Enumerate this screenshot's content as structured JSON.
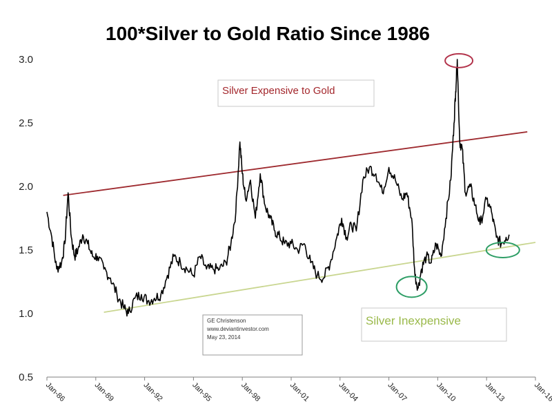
{
  "chart_data": {
    "type": "line",
    "title": "100*Silver to Gold Ratio Since 1986",
    "xlabel": "",
    "ylabel": "",
    "ylim": [
      0.5,
      3.0
    ],
    "yticks": [
      "0.5",
      "1.0",
      "1.5",
      "2.0",
      "2.5",
      "3.0"
    ],
    "xlim": [
      1986.0,
      2016.0
    ],
    "xtick_labels": [
      "Jan-86",
      "Jan-89",
      "Jan-92",
      "Jan-95",
      "Jan-98",
      "Jan-01",
      "Jan-04",
      "Jan-07",
      "Jan-10",
      "Jan-13",
      "Jan-16"
    ],
    "xtick_years": [
      1986,
      1989,
      1992,
      1995,
      1998,
      2001,
      2004,
      2007,
      2010,
      2013,
      2016
    ],
    "grid": false,
    "series": [
      {
        "color": "#000000",
        "x": [
          1986.0,
          1986.3,
          1986.6,
          1986.9,
          1987.1,
          1987.3,
          1987.5,
          1987.7,
          1987.9,
          1988.2,
          1988.5,
          1988.8,
          1989.1,
          1989.5,
          1989.9,
          1990.3,
          1990.7,
          1991.0,
          1991.4,
          1991.8,
          1992.2,
          1992.6,
          1993.0,
          1993.4,
          1993.8,
          1994.2,
          1994.6,
          1995.0,
          1995.4,
          1995.8,
          1996.2,
          1996.6,
          1997.0,
          1997.3,
          1997.6,
          1997.85,
          1998.0,
          1998.2,
          1998.5,
          1998.8,
          1999.1,
          1999.4,
          1999.7,
          2000.0,
          2000.3,
          2000.6,
          2001.0,
          2001.4,
          2001.8,
          2002.2,
          2002.6,
          2003.0,
          2003.4,
          2003.8,
          2004.1,
          2004.4,
          2004.7,
          2005.0,
          2005.4,
          2005.8,
          2006.2,
          2006.6,
          2007.0,
          2007.4,
          2007.8,
          2008.1,
          2008.4,
          2008.6,
          2008.8,
          2009.0,
          2009.3,
          2009.6,
          2009.9,
          2010.2,
          2010.5,
          2010.8,
          2011.0,
          2011.1,
          2011.2,
          2011.35,
          2011.5,
          2011.7,
          2012.0,
          2012.3,
          2012.6,
          2013.0,
          2013.3,
          2013.6,
          2013.9,
          2014.2,
          2014.4
        ],
        "values": [
          1.8,
          1.6,
          1.35,
          1.4,
          1.55,
          1.95,
          1.6,
          1.45,
          1.5,
          1.62,
          1.55,
          1.45,
          1.45,
          1.35,
          1.28,
          1.15,
          1.05,
          1.0,
          1.12,
          1.15,
          1.1,
          1.12,
          1.15,
          1.3,
          1.45,
          1.4,
          1.35,
          1.3,
          1.45,
          1.35,
          1.35,
          1.35,
          1.4,
          1.55,
          1.8,
          2.35,
          2.1,
          1.9,
          2.05,
          1.75,
          2.1,
          1.85,
          1.75,
          1.65,
          1.6,
          1.55,
          1.55,
          1.5,
          1.55,
          1.4,
          1.3,
          1.28,
          1.4,
          1.6,
          1.75,
          1.6,
          1.7,
          1.65,
          2.05,
          2.15,
          2.1,
          1.95,
          2.15,
          2.05,
          1.9,
          1.95,
          1.75,
          1.3,
          1.2,
          1.35,
          1.45,
          1.4,
          1.55,
          1.45,
          1.75,
          2.05,
          2.5,
          2.75,
          3.0,
          2.35,
          2.3,
          1.95,
          2.0,
          1.85,
          1.7,
          1.9,
          1.8,
          1.6,
          1.55,
          1.6,
          1.62
        ]
      }
    ],
    "trendlines": [
      {
        "kind": "upper",
        "color": "#9e2a2f",
        "x": [
          1987.0,
          2015.5
        ],
        "y": [
          1.93,
          2.43
        ]
      },
      {
        "kind": "lower",
        "color": "#c9d690",
        "x": [
          1989.5,
          2016.0
        ],
        "y": [
          1.01,
          1.56
        ]
      }
    ],
    "highlights": [
      {
        "color": "#b2324a",
        "x": 2011.3,
        "y": 2.99
      },
      {
        "color": "#2e9e66",
        "x": 2008.4,
        "y": 1.21
      },
      {
        "color": "#2e9e66",
        "x": 2014.0,
        "y": 1.5
      }
    ],
    "annotations": {
      "expensive": "Silver Expensive to Gold",
      "inexpensive": "Silver Inexpensive",
      "credit_lines": [
        "GE Christenson",
        "www.deviantinvestor.com",
        "May 23, 2014"
      ]
    }
  }
}
